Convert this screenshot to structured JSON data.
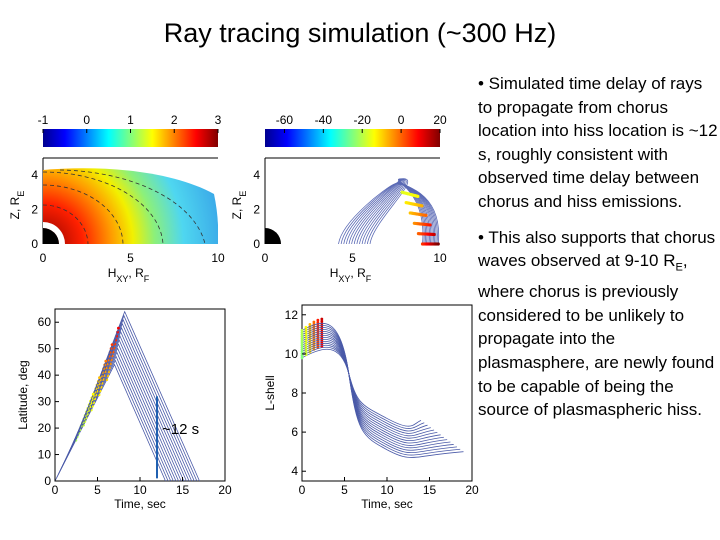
{
  "page": {
    "title": "Ray tracing simulation (~300 Hz)"
  },
  "bullets": [
    "• Simulated time delay of rays to propagate from chorus location into hiss location is ~12 s, roughly consistent with observed time delay between chorus and hiss emissions.",
    "• This also supports that chorus waves observed at 9-10 R",
    "E",
    ", where chorus is previously considered to be unlikely to propagate into the plasmasphere, are newly found to be capable of being the source of plasmaspheric hiss."
  ],
  "chart_data": [
    {
      "type": "heatmap",
      "colorbar": {
        "ticks": [
          "-1",
          "0",
          "1",
          "2",
          "3"
        ],
        "range": [
          -1,
          3
        ]
      },
      "xlabel": "H",
      "xlabel_sub": "XY",
      "xlabel_tail": ", R",
      "xlabel_unit_sub": "F",
      "ylabel": "Z, R",
      "ylabel_sub": "E",
      "x_ticks": [
        "0",
        "5",
        "10"
      ],
      "y_ticks": [
        "0",
        "2",
        "4"
      ],
      "xlim": [
        0,
        10
      ],
      "ylim": [
        0,
        5
      ]
    },
    {
      "type": "line",
      "colorbar": {
        "ticks": [
          "-60",
          "-40",
          "-20",
          "0",
          "20"
        ],
        "range": [
          -70,
          20
        ]
      },
      "xlabel": "H",
      "xlabel_sub": "XY",
      "xlabel_tail": ", R",
      "xlabel_unit_sub": "F",
      "ylabel": "Z, R",
      "ylabel_sub": "E",
      "x_ticks": [
        "0",
        "5",
        "10"
      ],
      "y_ticks": [
        "0",
        "2",
        "4"
      ],
      "xlim": [
        0,
        10
      ],
      "ylim": [
        0,
        5
      ],
      "ray_count": 13,
      "ray_start_x": [
        9.0,
        9.9
      ],
      "ray_peak_z": 3.8,
      "ray_end_x": [
        4.2,
        6.0
      ]
    },
    {
      "type": "line",
      "xlabel": "Time, sec",
      "ylabel": "Latitude, deg",
      "x_ticks": [
        "0",
        "5",
        "10",
        "15",
        "20"
      ],
      "y_ticks": [
        "0",
        "10",
        "20",
        "30",
        "40",
        "50",
        "60"
      ],
      "xlim": [
        0,
        20
      ],
      "ylim": [
        0,
        65
      ],
      "annotation": "~12 s",
      "marker_x": 12,
      "series": [
        {
          "x": [
            0,
            7,
            14
          ],
          "y": [
            0,
            45,
            0
          ]
        },
        {
          "x": [
            1,
            7.5,
            15
          ],
          "y": [
            8,
            55,
            0
          ]
        },
        {
          "x": [
            2,
            8,
            16
          ],
          "y": [
            13,
            62,
            0
          ]
        }
      ]
    },
    {
      "type": "line",
      "xlabel": "Time, sec",
      "ylabel": "L-shell",
      "x_ticks": [
        "0",
        "5",
        "10",
        "15",
        "20"
      ],
      "y_ticks": [
        "4",
        "6",
        "8",
        "10",
        "12"
      ],
      "xlim": [
        0,
        20
      ],
      "ylim": [
        3.5,
        12.5
      ],
      "series": [
        {
          "x": [
            0,
            4,
            7,
            11,
            16
          ],
          "y": [
            10,
            10.5,
            7.5,
            6.5,
            6
          ]
        },
        {
          "x": [
            0,
            4,
            7,
            11,
            16
          ],
          "y": [
            11,
            11.7,
            7,
            5.5,
            5
          ]
        }
      ]
    }
  ]
}
